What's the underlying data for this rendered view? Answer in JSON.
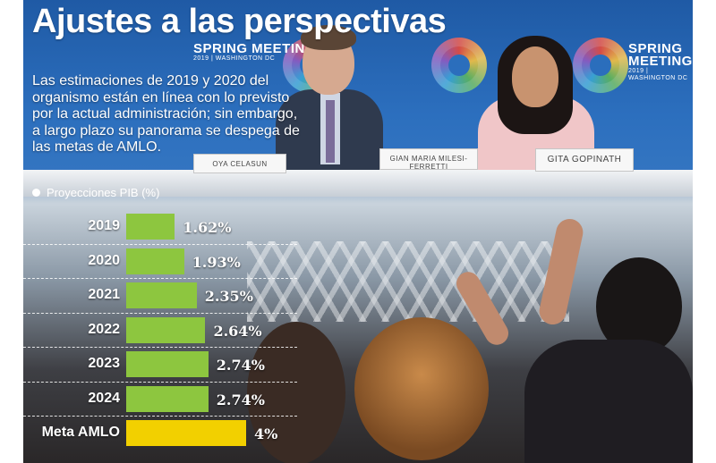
{
  "title": "Ajustes a las perspectivas",
  "intro": "Las estimaciones de 2019 y 2020 del organismo están en línea con lo previsto por la actual administración; sin embargo, a largo plazo su panorama se despega de las metas de AMLO.",
  "photo": {
    "backdrop_text": "SPRING MEETINGS",
    "backdrop_sub": "2019 | WASHINGTON DC",
    "nameplates": [
      "GIAN MARIA MILESI-FERRETTI",
      "GITA GOPINATH",
      "OYA CELASUN"
    ]
  },
  "chart_data": {
    "type": "bar",
    "orientation": "horizontal",
    "legend": "Proyecciones PIB (%)",
    "categories": [
      "2019",
      "2020",
      "2021",
      "2022",
      "2023",
      "2024",
      "Meta AMLO"
    ],
    "values": [
      1.62,
      1.93,
      2.35,
      2.64,
      2.74,
      2.74,
      4
    ],
    "value_labels": [
      "1.62%",
      "1.93%",
      "2.35%",
      "2.64%",
      "2.74%",
      "2.74%",
      "4%"
    ],
    "colors": [
      "#8dc63f",
      "#8dc63f",
      "#8dc63f",
      "#8dc63f",
      "#8dc63f",
      "#8dc63f",
      "#f2d000"
    ],
    "xlim": [
      0,
      4
    ]
  }
}
